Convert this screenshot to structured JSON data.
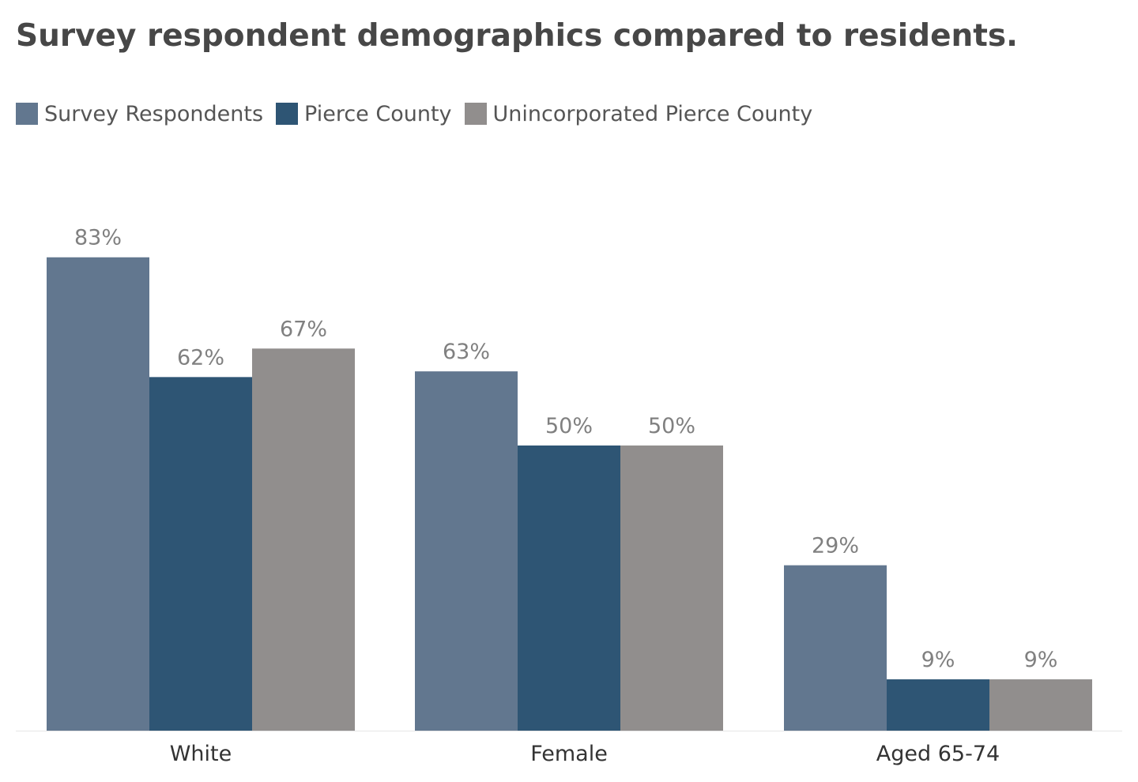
{
  "chart_data": {
    "type": "bar",
    "title": "Survey respondent demographics compared to residents.",
    "xlabel": "",
    "ylabel": "",
    "categories": [
      "White",
      "Female",
      "Aged 65-74"
    ],
    "series": [
      {
        "name": "Survey Respondents",
        "color": "#62778f",
        "values": [
          83,
          63,
          29
        ],
        "labels": [
          "83%",
          "63%",
          "29%"
        ]
      },
      {
        "name": "Pierce County",
        "color": "#2e5574",
        "values": [
          62,
          50,
          9
        ],
        "labels": [
          "62%",
          "50%",
          "9%"
        ]
      },
      {
        "name": "Unincorporated Pierce County",
        "color": "#918e8d",
        "values": [
          67,
          50,
          9
        ],
        "labels": [
          "67%",
          "50%",
          "9%"
        ]
      }
    ],
    "ylim": [
      0,
      100
    ],
    "grid": false,
    "legend": "top-left"
  }
}
